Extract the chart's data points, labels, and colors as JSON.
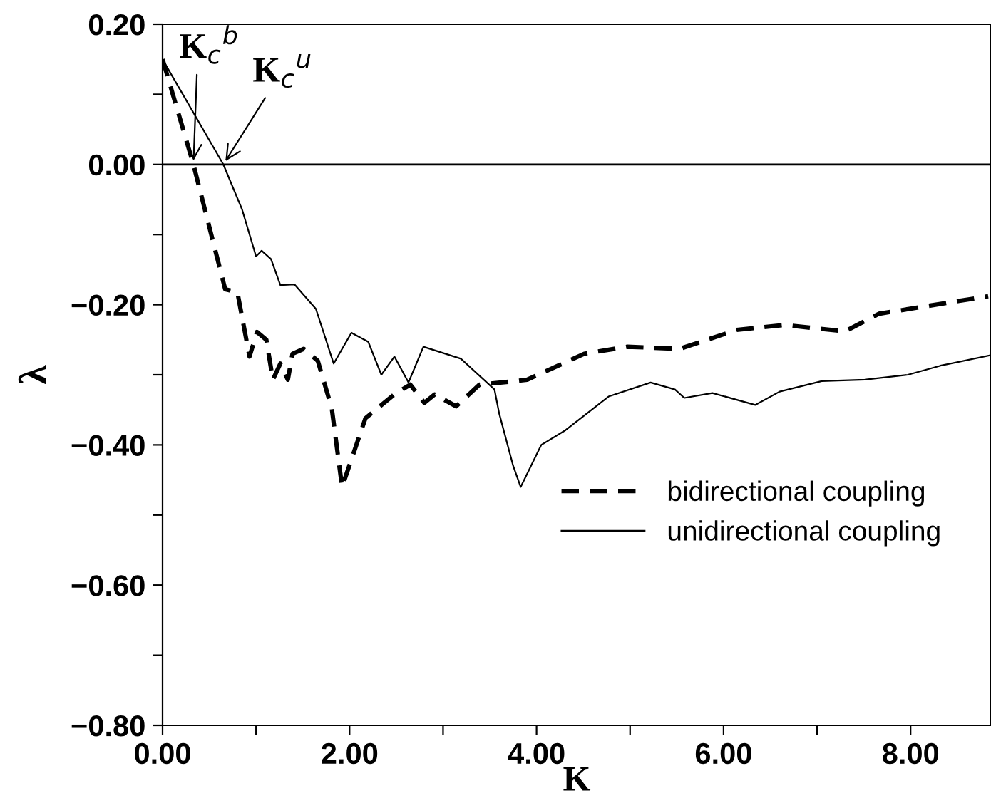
{
  "chart_data": {
    "type": "line",
    "xlabel": "K",
    "ylabel": "λ",
    "xlim": [
      0,
      8.86
    ],
    "ylim": [
      -0.8,
      0.2
    ],
    "xticks": [
      {
        "value": 0,
        "label": "0.00"
      },
      {
        "value": 1,
        "label": null
      },
      {
        "value": 2,
        "label": "2.00"
      },
      {
        "value": 3,
        "label": null
      },
      {
        "value": 4,
        "label": "4.00"
      },
      {
        "value": 5,
        "label": null
      },
      {
        "value": 6,
        "label": "6.00"
      },
      {
        "value": 7,
        "label": null
      },
      {
        "value": 8,
        "label": "8.00"
      }
    ],
    "yticks": [
      {
        "value": -0.8,
        "label": "−0.80"
      },
      {
        "value": -0.7,
        "label": null
      },
      {
        "value": -0.6,
        "label": "−0.60"
      },
      {
        "value": -0.5,
        "label": null
      },
      {
        "value": -0.4,
        "label": "−0.40"
      },
      {
        "value": -0.3,
        "label": null
      },
      {
        "value": -0.2,
        "label": "−0.20"
      },
      {
        "value": -0.1,
        "label": null
      },
      {
        "value": 0,
        "label": "0.00"
      },
      {
        "value": 0.1,
        "label": null
      },
      {
        "value": 0.2,
        "label": "0.20"
      }
    ],
    "grid": false,
    "legend": "lower right",
    "marker": "none",
    "ref_lines": [
      {
        "axis": "y",
        "value": 0,
        "color": "#000000",
        "line_style": "solid"
      }
    ],
    "annotations": [
      {
        "text": "K$_{c}$$^{b}$",
        "x": 0.33,
        "y": 0
      },
      {
        "text": "K$_{c}$$^{u}$",
        "x": 0.65,
        "y": 0
      }
    ],
    "series": [
      {
        "name": "bidirectional coupling",
        "color": "#000000",
        "line_style": "dashed",
        "x": [
          0,
          0.33,
          0.67,
          0.8,
          0.93,
          1.01,
          1.11,
          1.18,
          1.26,
          1.34,
          1.39,
          1.51,
          1.66,
          1.81,
          1.92,
          2.17,
          2.48,
          2.65,
          2.8,
          2.91,
          3.14,
          3.39,
          3.7,
          3.9,
          4.51,
          4.97,
          5.53,
          6.14,
          6.65,
          7.3,
          7.66,
          8.83
        ],
        "values": [
          0.15,
          0,
          -0.178,
          -0.182,
          -0.274,
          -0.239,
          -0.25,
          -0.307,
          -0.284,
          -0.307,
          -0.27,
          -0.263,
          -0.28,
          -0.348,
          -0.46,
          -0.362,
          -0.328,
          -0.314,
          -0.34,
          -0.328,
          -0.345,
          -0.314,
          -0.31,
          -0.307,
          -0.27,
          -0.26,
          -0.263,
          -0.236,
          -0.229,
          -0.238,
          -0.213,
          -0.188
        ]
      },
      {
        "name": "unidirectional coupling",
        "color": "#000000",
        "line_style": "solid",
        "x": [
          0,
          0.65,
          0.85,
          1.0,
          1.06,
          1.16,
          1.26,
          1.41,
          1.64,
          1.83,
          2.02,
          2.2,
          2.34,
          2.48,
          2.63,
          2.79,
          3.19,
          3.55,
          3.6,
          3.75,
          3.83,
          4.05,
          4.31,
          4.77,
          5.22,
          5.48,
          5.58,
          5.88,
          6.34,
          6.6,
          7.05,
          7.51,
          7.97,
          8.32,
          8.86
        ],
        "values": [
          0.15,
          0,
          -0.064,
          -0.131,
          -0.123,
          -0.135,
          -0.172,
          -0.171,
          -0.206,
          -0.284,
          -0.24,
          -0.253,
          -0.3,
          -0.274,
          -0.311,
          -0.26,
          -0.277,
          -0.321,
          -0.355,
          -0.43,
          -0.46,
          -0.4,
          -0.379,
          -0.331,
          -0.311,
          -0.321,
          -0.333,
          -0.326,
          -0.343,
          -0.324,
          -0.309,
          -0.307,
          -0.3,
          -0.287,
          -0.272
        ]
      }
    ]
  }
}
